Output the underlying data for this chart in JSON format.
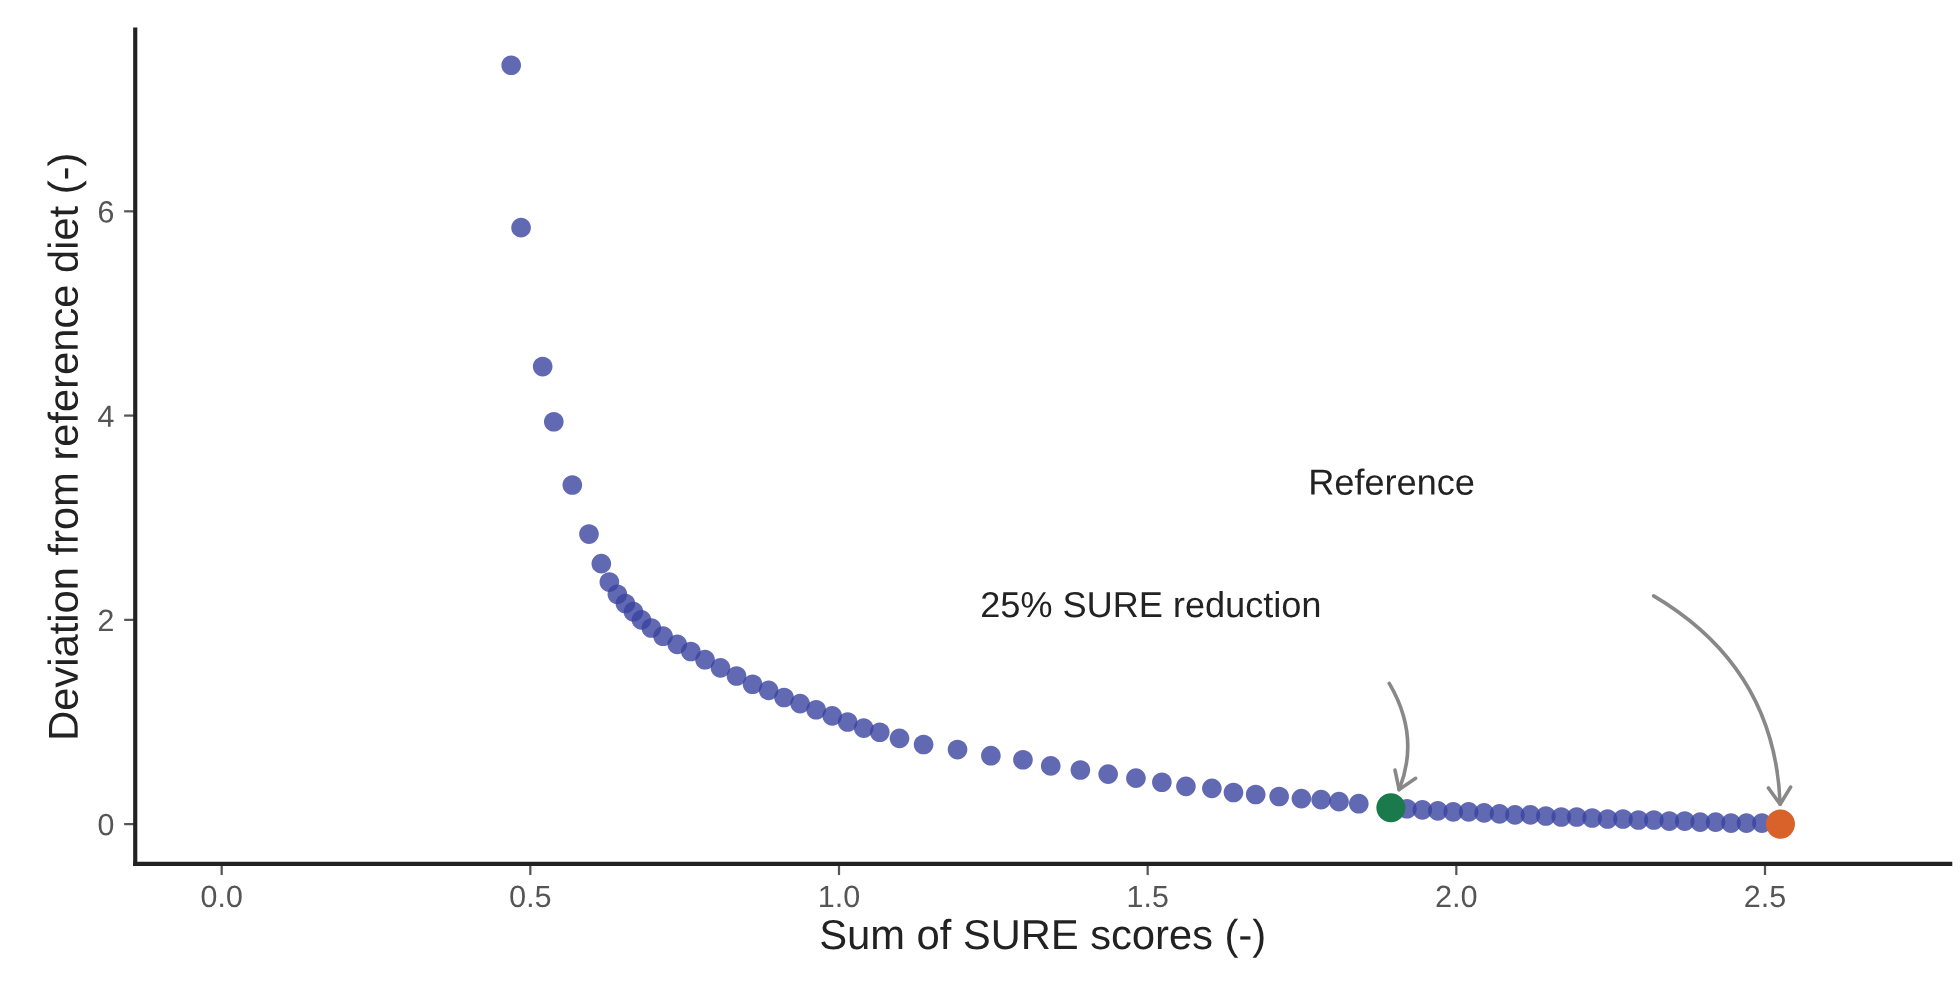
{
  "chart_data": {
    "type": "scatter",
    "xlabel": "Sum of SURE scores (-)",
    "ylabel": "Deviation from reference diet (-)",
    "xlim": [
      -0.14,
      2.8
    ],
    "ylim": [
      -0.39,
      7.78
    ],
    "xticks": [
      {
        "value": 0,
        "label": "0.0"
      },
      {
        "value": 0.5,
        "label": "0.5"
      },
      {
        "value": 1,
        "label": "1.0"
      },
      {
        "value": 1.5,
        "label": "1.5"
      },
      {
        "value": 2,
        "label": "2.0"
      },
      {
        "value": 2.5,
        "label": "2.5"
      }
    ],
    "yticks": [
      0,
      2,
      4,
      6
    ],
    "grid": false,
    "legend": false,
    "marker": "circle",
    "series": [
      {
        "color": "#3b44a0",
        "x": [
          0.469,
          0.485,
          0.52,
          0.538,
          0.568,
          0.595,
          0.615,
          0.628,
          0.641,
          0.654,
          0.667,
          0.68,
          0.696,
          0.715,
          0.738,
          0.76,
          0.783,
          0.808,
          0.834,
          0.86,
          0.886,
          0.911,
          0.937,
          0.963,
          0.989,
          1.014,
          1.04,
          1.066,
          1.098,
          1.137,
          1.192,
          1.246,
          1.298,
          1.343,
          1.391,
          1.436,
          1.481,
          1.523,
          1.562,
          1.604,
          1.639,
          1.675,
          1.713,
          1.749,
          1.781,
          1.81,
          1.842,
          1.92,
          1.945,
          1.97,
          1.995,
          2.02,
          2.045,
          2.07,
          2.095,
          2.12,
          2.145,
          2.17,
          2.195,
          2.22,
          2.245,
          2.27,
          2.295,
          2.32,
          2.345,
          2.37,
          2.395,
          2.42,
          2.445,
          2.47,
          2.495
        ],
        "values": [
          7.43,
          5.84,
          4.48,
          3.94,
          3.32,
          2.84,
          2.55,
          2.37,
          2.25,
          2.16,
          2.08,
          2.0,
          1.92,
          1.84,
          1.76,
          1.69,
          1.61,
          1.53,
          1.45,
          1.37,
          1.31,
          1.24,
          1.18,
          1.12,
          1.06,
          1.0,
          0.94,
          0.9,
          0.84,
          0.78,
          0.73,
          0.67,
          0.63,
          0.57,
          0.53,
          0.49,
          0.45,
          0.41,
          0.37,
          0.35,
          0.31,
          0.29,
          0.27,
          0.25,
          0.24,
          0.22,
          0.2,
          0.15,
          0.14,
          0.13,
          0.12,
          0.12,
          0.11,
          0.1,
          0.09,
          0.09,
          0.08,
          0.07,
          0.07,
          0.06,
          0.05,
          0.05,
          0.04,
          0.04,
          0.03,
          0.03,
          0.02,
          0.02,
          0.01,
          0.01,
          0.01
        ]
      },
      {
        "color": "#1a7a4c",
        "x": [
          1.894
        ],
        "values": [
          0.16
        ]
      },
      {
        "color": "#d9622b",
        "x": [
          2.525
        ],
        "values": [
          0.0
        ]
      }
    ],
    "annotations": [
      "25% SURE reduction",
      "Reference"
    ]
  }
}
